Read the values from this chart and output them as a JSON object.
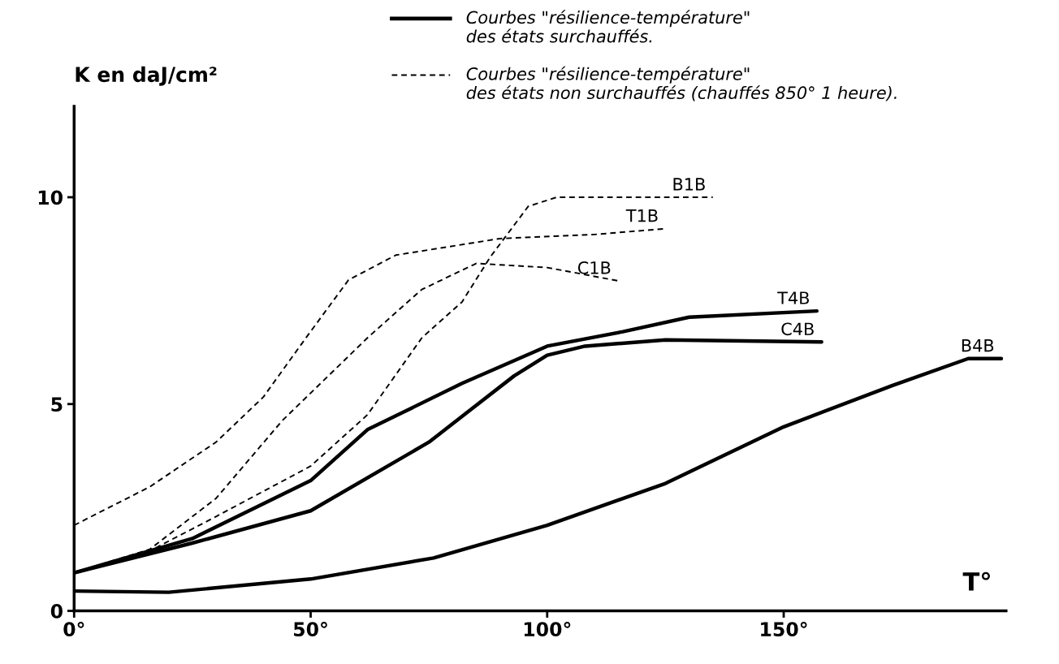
{
  "chart_data": {
    "type": "line",
    "ylabel": "K en daJ/cm²",
    "xlabel": "T°",
    "annotations": [
      "Courbes \"résilience-température\"\ndes états surchauffés.",
      "Courbes \"résilience-température\"\ndes états non surchauffés (chauffés 850° 1 heure)."
    ],
    "xlim": [
      0,
      197
    ],
    "ylim": [
      0,
      12.2
    ],
    "xticks": [
      {
        "value": 0,
        "label": "0°"
      },
      {
        "value": 50,
        "label": "50°"
      },
      {
        "value": 100,
        "label": "100°"
      },
      {
        "value": 150,
        "label": "150°"
      }
    ],
    "yticks": [
      0,
      5,
      10
    ],
    "grid": false,
    "marker": "none",
    "series": [
      {
        "name": "B1B",
        "color": "#000000",
        "line_style": "dashed",
        "x": [
          0,
          16,
          30,
          50,
          62,
          73.5,
          82,
          88,
          96,
          102,
          120,
          135
        ],
        "values": [
          0.92,
          1.45,
          2.28,
          3.5,
          4.74,
          6.6,
          7.47,
          8.56,
          9.78,
          10.0,
          10.0,
          10.0
        ]
      },
      {
        "name": "T1B",
        "color": "#000000",
        "line_style": "dashed",
        "x": [
          0,
          16,
          30,
          40,
          49,
          58,
          68,
          90,
          110,
          125
        ],
        "values": [
          2.07,
          3.0,
          4.08,
          5.17,
          6.6,
          8.0,
          8.6,
          9.0,
          9.1,
          9.24
        ]
      },
      {
        "name": "C1B",
        "color": "#000000",
        "line_style": "dashed",
        "x": [
          0,
          16,
          30,
          44,
          62,
          73.5,
          85,
          100,
          115
        ],
        "values": [
          0.92,
          1.49,
          2.72,
          4.6,
          6.6,
          7.77,
          8.4,
          8.3,
          7.98
        ]
      },
      {
        "name": "T4B",
        "color": "#000000",
        "line_style": "solid",
        "x": [
          0,
          25,
          50,
          62,
          82,
          100,
          116,
          130,
          157
        ],
        "values": [
          0.92,
          1.75,
          3.15,
          4.38,
          5.5,
          6.4,
          6.75,
          7.1,
          7.25
        ]
      },
      {
        "name": "C4B",
        "color": "#000000",
        "line_style": "solid",
        "x": [
          0,
          25,
          50,
          75,
          93,
          100,
          108,
          125,
          158
        ],
        "values": [
          0.92,
          1.64,
          2.42,
          4.08,
          5.68,
          6.18,
          6.4,
          6.55,
          6.5
        ]
      },
      {
        "name": "B4B",
        "color": "#000000",
        "line_style": "solid",
        "x": [
          0,
          20,
          50,
          76,
          100,
          125,
          150,
          173,
          189,
          196
        ],
        "values": [
          0.48,
          0.45,
          0.77,
          1.28,
          2.07,
          3.08,
          4.45,
          5.45,
          6.1,
          6.1
        ]
      }
    ]
  }
}
